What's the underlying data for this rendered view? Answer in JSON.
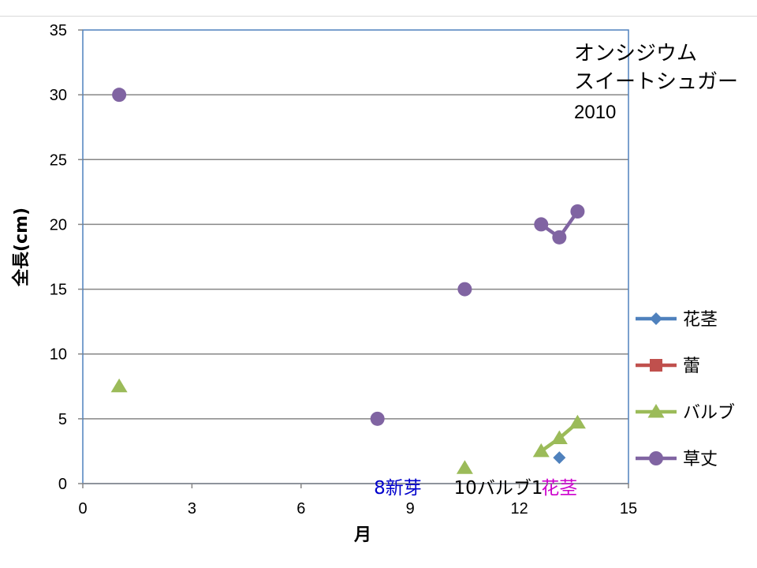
{
  "chart_data": {
    "type": "scatter",
    "title_lines": [
      "オンシジウム",
      "スイートシュガー",
      "2010"
    ],
    "xlabel": "月",
    "ylabel": "全長(cm)",
    "xlim": [
      0,
      15
    ],
    "ylim": [
      0,
      35
    ],
    "xticks": [
      0,
      3,
      6,
      9,
      12,
      15
    ],
    "yticks": [
      0,
      5,
      10,
      15,
      20,
      25,
      30,
      35
    ],
    "grid": "horizontal",
    "legend_position": "right",
    "series": [
      {
        "name": "花茎",
        "marker": "diamond",
        "color": "#4f81bd",
        "points": [
          {
            "x": 13.1,
            "y": 2.0
          }
        ]
      },
      {
        "name": "蕾",
        "marker": "square",
        "color": "#c0504d",
        "points": []
      },
      {
        "name": "バルブ",
        "marker": "triangle",
        "color": "#9bbb59",
        "points": [
          {
            "x": 1.0,
            "y": 7.5,
            "connect": false
          },
          {
            "x": 10.5,
            "y": 1.2,
            "connect": false
          },
          {
            "x": 12.6,
            "y": 2.5,
            "connect": true
          },
          {
            "x": 13.1,
            "y": 3.5,
            "connect": true
          },
          {
            "x": 13.6,
            "y": 4.7,
            "connect": true
          }
        ]
      },
      {
        "name": "草丈",
        "marker": "circle",
        "color": "#8064a2",
        "points": [
          {
            "x": 1.0,
            "y": 30.0,
            "connect": false
          },
          {
            "x": 8.1,
            "y": 5.0,
            "connect": false
          },
          {
            "x": 10.5,
            "y": 15.0,
            "connect": false
          },
          {
            "x": 12.6,
            "y": 20.0,
            "connect": true
          },
          {
            "x": 13.1,
            "y": 19.0,
            "connect": true
          },
          {
            "x": 13.6,
            "y": 21.0,
            "connect": true
          }
        ]
      }
    ],
    "annotations": [
      {
        "text": "8新芽",
        "x": 8.0,
        "color": "#0000cc"
      },
      {
        "text": "10バルブ1",
        "x": 10.2,
        "color": "#000000"
      },
      {
        "text": "花茎",
        "x": 12.6,
        "color": "#cc00cc"
      }
    ]
  }
}
